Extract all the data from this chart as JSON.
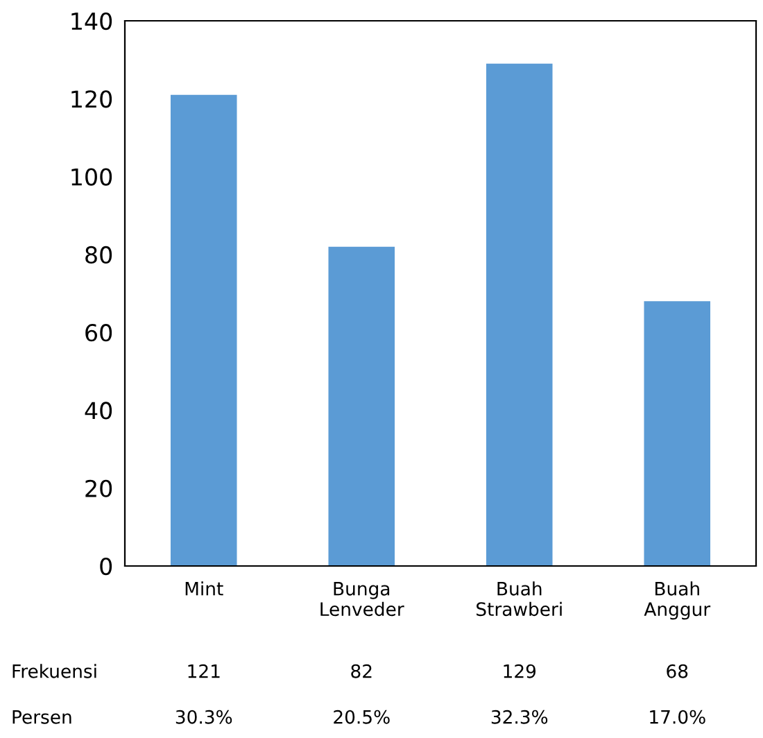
{
  "chart_data": {
    "type": "bar",
    "categories": [
      "Mint",
      "Bunga\nLenveder",
      "Buah\nStrawberi",
      "Buah\nAnggur"
    ],
    "series": [
      {
        "name": "Frekuensi",
        "color": "#5b9bd5",
        "values": [
          121,
          82,
          129,
          68
        ]
      }
    ],
    "ylim": [
      0,
      140
    ],
    "yticks": [
      0,
      20,
      40,
      60,
      80,
      100,
      120,
      140
    ],
    "grid": false,
    "legend": false,
    "data_labels": true,
    "annotations": [
      "Persen",
      "30.3%",
      "20.5%",
      "32.3%",
      "17.0%"
    ]
  }
}
